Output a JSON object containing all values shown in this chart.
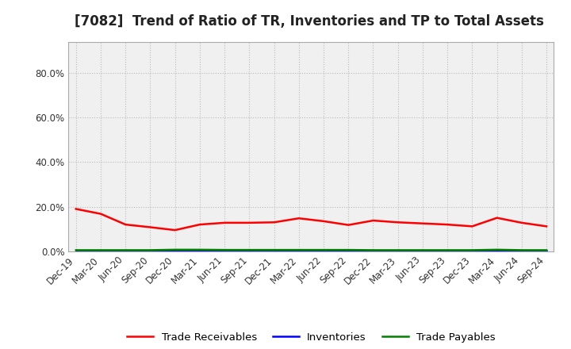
{
  "title": "[7082]  Trend of Ratio of TR, Inventories and TP to Total Assets",
  "x_labels": [
    "Dec-19",
    "Mar-20",
    "Jun-20",
    "Sep-20",
    "Dec-20",
    "Mar-21",
    "Jun-21",
    "Sep-21",
    "Dec-21",
    "Mar-22",
    "Jun-22",
    "Sep-22",
    "Dec-22",
    "Mar-23",
    "Jun-23",
    "Sep-23",
    "Dec-23",
    "Mar-24",
    "Jun-24",
    "Sep-24"
  ],
  "trade_receivables": [
    0.19,
    0.168,
    0.12,
    0.108,
    0.095,
    0.12,
    0.128,
    0.128,
    0.13,
    0.148,
    0.135,
    0.118,
    0.138,
    0.13,
    0.125,
    0.12,
    0.112,
    0.15,
    0.128,
    0.112
  ],
  "inventories": [
    0.002,
    0.002,
    0.002,
    0.002,
    0.002,
    0.002,
    0.002,
    0.002,
    0.002,
    0.002,
    0.002,
    0.002,
    0.002,
    0.002,
    0.002,
    0.002,
    0.002,
    0.002,
    0.002,
    0.002
  ],
  "trade_payables": [
    0.005,
    0.005,
    0.005,
    0.005,
    0.007,
    0.007,
    0.006,
    0.006,
    0.006,
    0.006,
    0.006,
    0.006,
    0.005,
    0.005,
    0.005,
    0.005,
    0.005,
    0.007,
    0.005,
    0.005
  ],
  "tr_color": "#ff0000",
  "inv_color": "#0000ff",
  "tp_color": "#008000",
  "ylim": [
    0.0,
    0.94
  ],
  "yticks": [
    0.0,
    0.2,
    0.4,
    0.6,
    0.8
  ],
  "ytick_labels": [
    "0.0%",
    "20.0%",
    "40.0%",
    "60.0%",
    "80.0%"
  ],
  "bg_color": "#ffffff",
  "plot_bg_color": "#f0f0f0",
  "grid_color": "#bbbbbb",
  "legend_labels": [
    "Trade Receivables",
    "Inventories",
    "Trade Payables"
  ],
  "title_fontsize": 12,
  "tick_fontsize": 8.5,
  "legend_fontsize": 9.5
}
